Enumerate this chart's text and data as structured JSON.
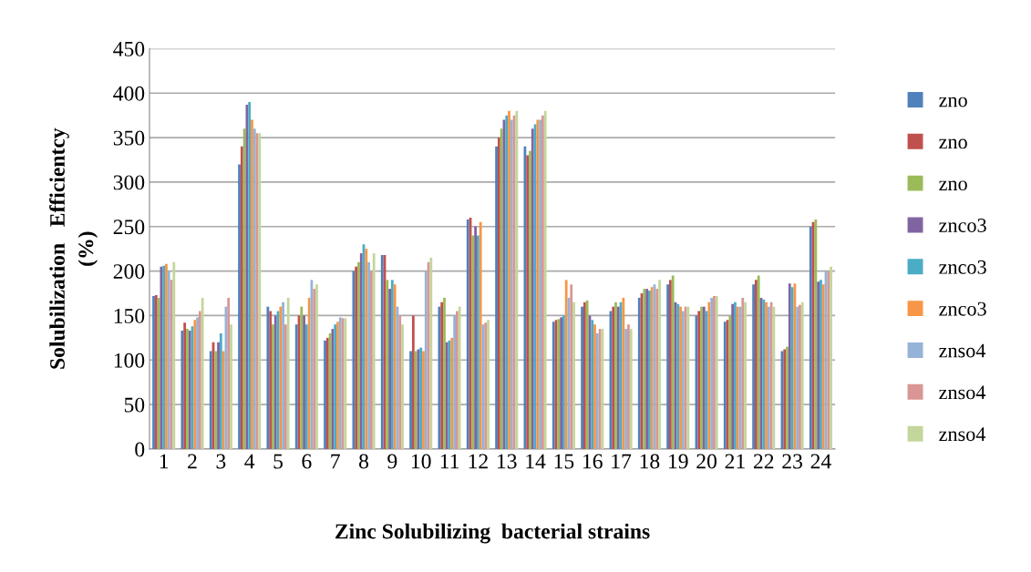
{
  "chart_data": {
    "type": "bar",
    "xlabel": "Zinc Solubilizing  bacterial strains",
    "ylabel": "Solubilization   Efficientcy\n(%)",
    "categories": [
      "1",
      "2",
      "3",
      "4",
      "5",
      "6",
      "7",
      "8",
      "9",
      "10",
      "11",
      "12",
      "13",
      "14",
      "15",
      "16",
      "17",
      "18",
      "19",
      "20",
      "21",
      "22",
      "23",
      "24"
    ],
    "series": [
      {
        "name": "zno",
        "color": "#4f81bd",
        "values": [
          172,
          133,
          110,
          320,
          160,
          140,
          122,
          200,
          218,
          110,
          160,
          258,
          340,
          340,
          143,
          160,
          155,
          170,
          185,
          150,
          143,
          185,
          110,
          250
        ]
      },
      {
        "name": "zno",
        "color": "#c0504d",
        "values": [
          173,
          142,
          120,
          340,
          155,
          150,
          125,
          205,
          218,
          150,
          165,
          260,
          350,
          330,
          145,
          165,
          160,
          175,
          190,
          155,
          145,
          190,
          112,
          255
        ]
      },
      {
        "name": "zno",
        "color": "#9bbb59",
        "values": [
          170,
          135,
          110,
          360,
          140,
          160,
          130,
          210,
          190,
          110,
          170,
          240,
          360,
          335,
          146,
          167,
          165,
          180,
          195,
          160,
          150,
          195,
          115,
          258
        ]
      },
      {
        "name": "znco3",
        "color": "#8064a2",
        "values": [
          205,
          133,
          120,
          387,
          150,
          150,
          135,
          220,
          180,
          112,
          120,
          250,
          370,
          360,
          148,
          150,
          160,
          180,
          165,
          160,
          163,
          170,
          186,
          188
        ]
      },
      {
        "name": "znco3",
        "color": "#4bacc6",
        "values": [
          206,
          138,
          130,
          390,
          155,
          140,
          140,
          230,
          190,
          114,
          122,
          240,
          375,
          365,
          150,
          145,
          165,
          178,
          163,
          155,
          165,
          168,
          182,
          190
        ]
      },
      {
        "name": "znco3",
        "color": "#f79646",
        "values": [
          208,
          145,
          110,
          370,
          160,
          170,
          143,
          225,
          185,
          110,
          125,
          255,
          380,
          370,
          190,
          140,
          170,
          182,
          160,
          165,
          160,
          165,
          186,
          185
        ]
      },
      {
        "name": "znso4",
        "color": "#95b3d7",
        "values": [
          200,
          148,
          160,
          360,
          165,
          190,
          148,
          210,
          160,
          200,
          150,
          140,
          370,
          370,
          170,
          130,
          135,
          185,
          155,
          170,
          160,
          160,
          160,
          200
        ]
      },
      {
        "name": "znso4",
        "color": "#d99694",
        "values": [
          190,
          155,
          170,
          355,
          140,
          180,
          147,
          200,
          150,
          210,
          155,
          142,
          375,
          375,
          185,
          135,
          140,
          180,
          160,
          172,
          170,
          165,
          162,
          200
        ]
      },
      {
        "name": "znso4",
        "color": "#c3d69b",
        "values": [
          210,
          170,
          140,
          355,
          170,
          185,
          147,
          220,
          140,
          215,
          160,
          145,
          380,
          380,
          165,
          135,
          135,
          190,
          160,
          172,
          165,
          160,
          165,
          205
        ]
      }
    ],
    "ylim": [
      0,
      450
    ],
    "yticks": [
      0,
      50,
      100,
      150,
      200,
      250,
      300,
      350,
      400,
      450
    ],
    "grid": "y",
    "legend": "right"
  }
}
